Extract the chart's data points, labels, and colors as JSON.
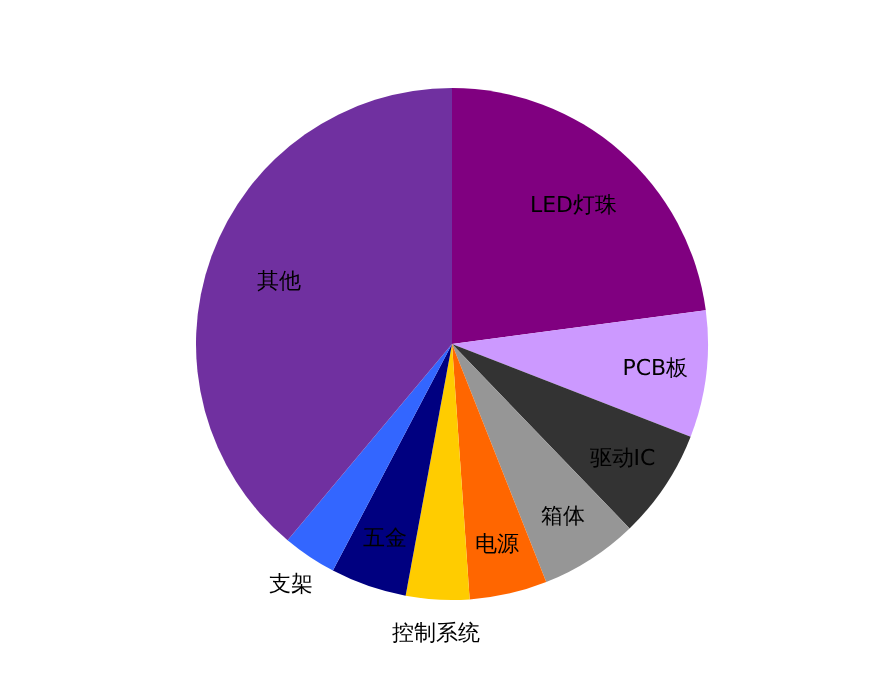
{
  "chart_data": {
    "type": "pie",
    "categories": [
      "LED灯珠",
      "PCB板",
      "驱动IC",
      "箱体",
      "电源",
      "控制系统",
      "五金",
      "支架",
      "其他"
    ],
    "values": [
      22.9,
      8.0,
      6.9,
      6.2,
      4.9,
      4.0,
      4.8,
      3.4,
      38.9
    ],
    "colors": [
      "#800080",
      "#cc99ff",
      "#333333",
      "#969696",
      "#ff6600",
      "#ffcc00",
      "#000080",
      "#3366ff",
      "#7030a0"
    ]
  }
}
